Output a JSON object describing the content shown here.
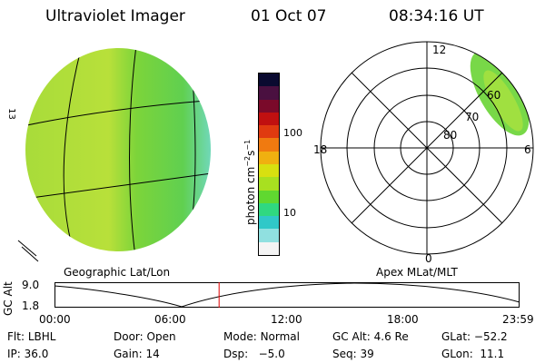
{
  "header": {
    "title": "Ultraviolet Imager",
    "date": "01 Oct 07",
    "time": "08:34:16 UT"
  },
  "colorbar": {
    "unit_label": "photon cm",
    "unit_sup1": "−2",
    "unit_mid": "s",
    "unit_sup2": "−1",
    "ticks": [
      {
        "value": 100,
        "label": "100"
      },
      {
        "value": 10,
        "label": "10"
      }
    ],
    "colors": [
      "#0a0a30",
      "#4a1040",
      "#7a0a2a",
      "#c01010",
      "#e03a10",
      "#f07a10",
      "#f0b010",
      "#d8e010",
      "#a8e020",
      "#60d830",
      "#30d880",
      "#30c8c8",
      "#90e0e0",
      "#f4f4f4"
    ]
  },
  "geo_map": {
    "label": "Geographic Lat/Lon",
    "side_marks": [
      "13"
    ]
  },
  "polar_plot": {
    "label": "Apex MLat/MLT",
    "mlt_labels": [
      "12",
      "18",
      "6",
      "0"
    ],
    "lat_labels": [
      "60",
      "70",
      "80"
    ]
  },
  "altitude_strip": {
    "ylabel": "GC Alt",
    "y_ticks": [
      "9.0",
      "1.8"
    ],
    "x_ticks": [
      "00:00",
      "06:00",
      "12:00",
      "18:00",
      "23:59"
    ],
    "current_time_fraction": 0.354
  },
  "status": {
    "row1": [
      {
        "key": "Flt:",
        "value": "LBHL"
      },
      {
        "key": "Door:",
        "value": "Open"
      },
      {
        "key": "Mode:",
        "value": "Normal"
      },
      {
        "key": "GC Alt:",
        "value": "4.6 Re"
      },
      {
        "key": "GLat:",
        "value": "−52.2"
      }
    ],
    "row2": [
      {
        "key": "IP:",
        "value": "36.0"
      },
      {
        "key": "Gain:",
        "value": "14"
      },
      {
        "key": "Dsp:",
        "value": "−5.0"
      },
      {
        "key": "Seq:",
        "value": "39"
      },
      {
        "key": "GLon:",
        "value": "11.1"
      }
    ]
  }
}
